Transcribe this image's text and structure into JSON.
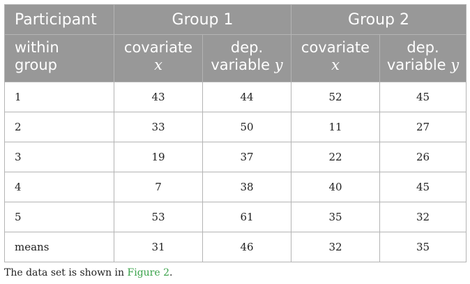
{
  "header": {
    "row1": {
      "participant": "Participant",
      "group1": "Group 1",
      "group2": "Group 2"
    },
    "row2": {
      "within_group_line1": "within",
      "within_group_line2": "group",
      "g1_cov_word": "covariate",
      "g1_cov_var": "x",
      "g1_dep_line1": "dep.",
      "g1_dep_line2_word": "variable",
      "g1_dep_var": "y",
      "g2_cov_word": "covariate",
      "g2_cov_var": "x",
      "g2_dep_line1": "dep.",
      "g2_dep_line2_word": "variable",
      "g2_dep_var": "y"
    }
  },
  "rows": [
    {
      "participant": "1",
      "g1_x": "43",
      "g1_y": "44",
      "g2_x": "52",
      "g2_y": "45"
    },
    {
      "participant": "2",
      "g1_x": "33",
      "g1_y": "50",
      "g2_x": "11",
      "g2_y": "27"
    },
    {
      "participant": "3",
      "g1_x": "19",
      "g1_y": "37",
      "g2_x": "22",
      "g2_y": "26"
    },
    {
      "participant": "4",
      "g1_x": "7",
      "g1_y": "38",
      "g2_x": "40",
      "g2_y": "45"
    },
    {
      "participant": "5",
      "g1_x": "53",
      "g1_y": "61",
      "g2_x": "35",
      "g2_y": "32"
    },
    {
      "participant": "means",
      "g1_x": "31",
      "g1_y": "46",
      "g2_x": "32",
      "g2_y": "35"
    }
  ],
  "footnote": {
    "prefix": "The data set is shown in ",
    "link_text": "Figure 2",
    "suffix": "."
  },
  "colors": {
    "header_bg": "#989898",
    "header_text": "#ffffff",
    "link": "#3aa24a"
  }
}
